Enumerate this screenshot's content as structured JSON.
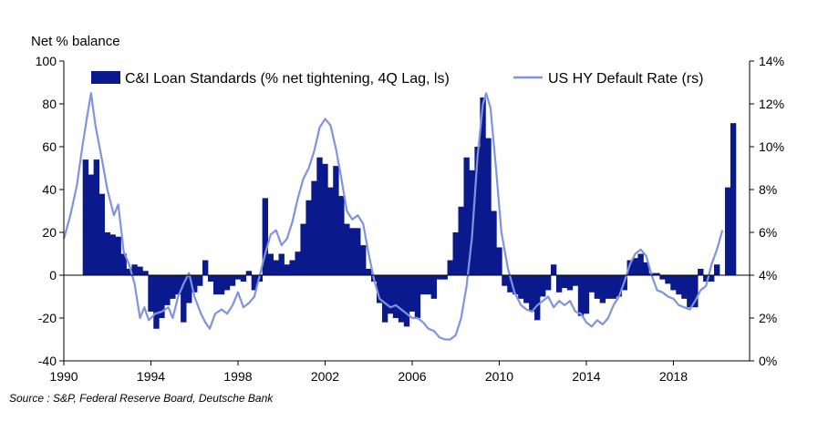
{
  "chart_data": {
    "type": "bar+line",
    "left_axis_title": "Net % balance",
    "left_ylim": [
      -40,
      100
    ],
    "left_ticks": [
      "100",
      "80",
      "60",
      "40",
      "20",
      "0",
      "-20",
      "-40"
    ],
    "right_ylim": [
      0,
      14
    ],
    "right_ticks": [
      "14%",
      "12%",
      "10%",
      "8%",
      "6%",
      "4%",
      "2%",
      "0%"
    ],
    "xlim": [
      1990,
      2021.5
    ],
    "x_ticks": [
      "1990",
      "1994",
      "1998",
      "2002",
      "2006",
      "2010",
      "2014",
      "2018"
    ],
    "grid": false,
    "legend_position": "top",
    "bar_series": {
      "name": "C&I Loan Standards (% net tightening, 4Q Lag, ls)",
      "color": "#0a1a8c",
      "points": [
        [
          1991.0,
          54
        ],
        [
          1991.25,
          47
        ],
        [
          1991.5,
          54
        ],
        [
          1991.75,
          38
        ],
        [
          1992.0,
          20
        ],
        [
          1992.25,
          19
        ],
        [
          1992.5,
          18
        ],
        [
          1992.75,
          10
        ],
        [
          1993.0,
          3
        ],
        [
          1993.25,
          5
        ],
        [
          1993.5,
          4
        ],
        [
          1993.75,
          2
        ],
        [
          1994.0,
          -17
        ],
        [
          1994.25,
          -25
        ],
        [
          1994.5,
          -20
        ],
        [
          1994.75,
          -14
        ],
        [
          1995.0,
          -11
        ],
        [
          1995.25,
          -9
        ],
        [
          1995.5,
          -22
        ],
        [
          1995.75,
          -13
        ],
        [
          1996.0,
          -8
        ],
        [
          1996.25,
          -5
        ],
        [
          1996.5,
          7
        ],
        [
          1996.75,
          -3
        ],
        [
          1997.0,
          -9
        ],
        [
          1997.25,
          -9
        ],
        [
          1997.5,
          -7
        ],
        [
          1997.75,
          -5
        ],
        [
          1998.0,
          -2
        ],
        [
          1998.25,
          -3
        ],
        [
          1998.5,
          2
        ],
        [
          1998.75,
          -7
        ],
        [
          1999.0,
          -3
        ],
        [
          1999.25,
          36
        ],
        [
          1999.5,
          10
        ],
        [
          1999.75,
          7
        ],
        [
          2000.0,
          10
        ],
        [
          2000.25,
          5
        ],
        [
          2000.5,
          7
        ],
        [
          2000.75,
          11
        ],
        [
          2001.0,
          24
        ],
        [
          2001.25,
          35
        ],
        [
          2001.5,
          44
        ],
        [
          2001.75,
          55
        ],
        [
          2002.0,
          52
        ],
        [
          2002.25,
          41
        ],
        [
          2002.5,
          51
        ],
        [
          2002.75,
          37
        ],
        [
          2003.0,
          24
        ],
        [
          2003.25,
          22
        ],
        [
          2003.5,
          22
        ],
        [
          2003.75,
          14
        ],
        [
          2004.0,
          3
        ],
        [
          2004.25,
          -3
        ],
        [
          2004.5,
          -13
        ],
        [
          2004.75,
          -22
        ],
        [
          2005.0,
          -18
        ],
        [
          2005.25,
          -20
        ],
        [
          2005.5,
          -22
        ],
        [
          2005.75,
          -24
        ],
        [
          2006.0,
          -17
        ],
        [
          2006.25,
          -20
        ],
        [
          2006.5,
          -9
        ],
        [
          2006.75,
          -9
        ],
        [
          2007.0,
          -11
        ],
        [
          2007.25,
          -2
        ],
        [
          2007.5,
          -2
        ],
        [
          2007.75,
          7
        ],
        [
          2008.0,
          20
        ],
        [
          2008.25,
          32
        ],
        [
          2008.5,
          55
        ],
        [
          2008.75,
          49
        ],
        [
          2009.0,
          60
        ],
        [
          2009.25,
          83
        ],
        [
          2009.5,
          64
        ],
        [
          2009.75,
          30
        ],
        [
          2010.0,
          13
        ],
        [
          2010.25,
          -5
        ],
        [
          2010.5,
          -8
        ],
        [
          2010.75,
          -9
        ],
        [
          2011.0,
          -11
        ],
        [
          2011.25,
          -13
        ],
        [
          2011.5,
          -17
        ],
        [
          2011.75,
          -21
        ],
        [
          2012.0,
          -10
        ],
        [
          2012.25,
          -7
        ],
        [
          2012.5,
          5
        ],
        [
          2012.75,
          -8
        ],
        [
          2013.0,
          -6
        ],
        [
          2013.25,
          -7
        ],
        [
          2013.5,
          -5
        ],
        [
          2013.75,
          -19
        ],
        [
          2014.0,
          -18
        ],
        [
          2014.25,
          -8
        ],
        [
          2014.5,
          -11
        ],
        [
          2014.75,
          -13
        ],
        [
          2015.0,
          -11
        ],
        [
          2015.25,
          -11
        ],
        [
          2015.5,
          -10
        ],
        [
          2015.75,
          -7
        ],
        [
          2016.0,
          7
        ],
        [
          2016.25,
          8
        ],
        [
          2016.5,
          10
        ],
        [
          2016.75,
          6
        ],
        [
          2017.0,
          1
        ],
        [
          2017.25,
          1
        ],
        [
          2017.5,
          -2
        ],
        [
          2017.75,
          -4
        ],
        [
          2018.0,
          -7
        ],
        [
          2018.25,
          -9
        ],
        [
          2018.5,
          -11
        ],
        [
          2018.75,
          -15
        ],
        [
          2019.0,
          -15
        ],
        [
          2019.25,
          3
        ],
        [
          2019.5,
          -3
        ],
        [
          2019.75,
          -3
        ],
        [
          2020.0,
          5
        ],
        [
          2020.5,
          41
        ],
        [
          2020.75,
          71
        ]
      ]
    },
    "line_series": {
      "name": "US HY Default Rate (rs)",
      "color": "#7f93e0",
      "points": [
        [
          1990.0,
          5.7
        ],
        [
          1990.3,
          6.8
        ],
        [
          1990.6,
          8.2
        ],
        [
          1990.85,
          10.0
        ],
        [
          1991.1,
          11.6
        ],
        [
          1991.25,
          12.5
        ],
        [
          1991.45,
          11.0
        ],
        [
          1991.75,
          9.4
        ],
        [
          1992.0,
          8.0
        ],
        [
          1992.3,
          6.8
        ],
        [
          1992.5,
          7.3
        ],
        [
          1992.75,
          5.1
        ],
        [
          1993.0,
          4.5
        ],
        [
          1993.25,
          3.6
        ],
        [
          1993.5,
          2.0
        ],
        [
          1993.7,
          2.5
        ],
        [
          1993.9,
          1.9
        ],
        [
          1994.2,
          2.2
        ],
        [
          1994.5,
          2.3
        ],
        [
          1994.8,
          2.5
        ],
        [
          1995.0,
          2.0
        ],
        [
          1995.25,
          3.0
        ],
        [
          1995.5,
          3.6
        ],
        [
          1995.75,
          4.1
        ],
        [
          1996.0,
          3.0
        ],
        [
          1996.3,
          2.2
        ],
        [
          1996.5,
          1.8
        ],
        [
          1996.7,
          1.5
        ],
        [
          1996.95,
          2.2
        ],
        [
          1997.25,
          2.4
        ],
        [
          1997.5,
          2.2
        ],
        [
          1997.75,
          2.6
        ],
        [
          1998.0,
          3.2
        ],
        [
          1998.25,
          2.5
        ],
        [
          1998.5,
          2.7
        ],
        [
          1998.75,
          3.0
        ],
        [
          1999.0,
          4.0
        ],
        [
          1999.25,
          5.0
        ],
        [
          1999.5,
          5.9
        ],
        [
          1999.75,
          6.1
        ],
        [
          2000.0,
          5.4
        ],
        [
          2000.25,
          5.7
        ],
        [
          2000.5,
          6.5
        ],
        [
          2000.75,
          7.6
        ],
        [
          2001.0,
          8.5
        ],
        [
          2001.25,
          9.0
        ],
        [
          2001.5,
          9.8
        ],
        [
          2001.75,
          10.9
        ],
        [
          2002.0,
          11.3
        ],
        [
          2002.25,
          11.0
        ],
        [
          2002.5,
          9.9
        ],
        [
          2002.75,
          8.5
        ],
        [
          2003.0,
          7.0
        ],
        [
          2003.25,
          6.6
        ],
        [
          2003.5,
          6.8
        ],
        [
          2003.75,
          6.4
        ],
        [
          2004.0,
          5.0
        ],
        [
          2004.25,
          3.8
        ],
        [
          2004.5,
          2.9
        ],
        [
          2004.75,
          2.7
        ],
        [
          2005.0,
          2.5
        ],
        [
          2005.25,
          2.6
        ],
        [
          2005.5,
          2.4
        ],
        [
          2005.75,
          2.2
        ],
        [
          2006.0,
          2.0
        ],
        [
          2006.25,
          2.0
        ],
        [
          2006.5,
          1.8
        ],
        [
          2006.75,
          1.5
        ],
        [
          2007.0,
          1.4
        ],
        [
          2007.25,
          1.1
        ],
        [
          2007.5,
          1.0
        ],
        [
          2007.75,
          1.0
        ],
        [
          2008.0,
          1.2
        ],
        [
          2008.25,
          2.0
        ],
        [
          2008.5,
          3.5
        ],
        [
          2008.75,
          5.8
        ],
        [
          2009.0,
          9.5
        ],
        [
          2009.25,
          12.0
        ],
        [
          2009.4,
          12.5
        ],
        [
          2009.6,
          11.8
        ],
        [
          2009.85,
          9.0
        ],
        [
          2010.1,
          6.0
        ],
        [
          2010.4,
          4.3
        ],
        [
          2010.7,
          3.2
        ],
        [
          2011.0,
          2.6
        ],
        [
          2011.25,
          2.4
        ],
        [
          2011.5,
          2.3
        ],
        [
          2011.75,
          2.6
        ],
        [
          2012.0,
          2.8
        ],
        [
          2012.25,
          3.0
        ],
        [
          2012.5,
          2.5
        ],
        [
          2012.75,
          2.8
        ],
        [
          2013.0,
          2.6
        ],
        [
          2013.25,
          2.8
        ],
        [
          2013.5,
          2.3
        ],
        [
          2013.75,
          2.2
        ],
        [
          2014.0,
          1.8
        ],
        [
          2014.25,
          1.6
        ],
        [
          2014.5,
          1.9
        ],
        [
          2014.75,
          1.7
        ],
        [
          2015.0,
          2.0
        ],
        [
          2015.25,
          2.6
        ],
        [
          2015.5,
          3.0
        ],
        [
          2015.75,
          3.7
        ],
        [
          2016.0,
          4.5
        ],
        [
          2016.25,
          5.0
        ],
        [
          2016.5,
          5.2
        ],
        [
          2016.75,
          4.9
        ],
        [
          2017.0,
          4.0
        ],
        [
          2017.25,
          3.3
        ],
        [
          2017.5,
          3.2
        ],
        [
          2017.75,
          3.0
        ],
        [
          2018.0,
          2.9
        ],
        [
          2018.25,
          2.6
        ],
        [
          2018.5,
          2.5
        ],
        [
          2018.75,
          2.4
        ],
        [
          2019.0,
          2.8
        ],
        [
          2019.25,
          3.3
        ],
        [
          2019.5,
          3.5
        ],
        [
          2019.75,
          4.5
        ],
        [
          2020.0,
          5.2
        ],
        [
          2020.25,
          6.1
        ]
      ]
    }
  },
  "source_note": "Source : S&P, Federal Reserve Board, Deutsche Bank"
}
